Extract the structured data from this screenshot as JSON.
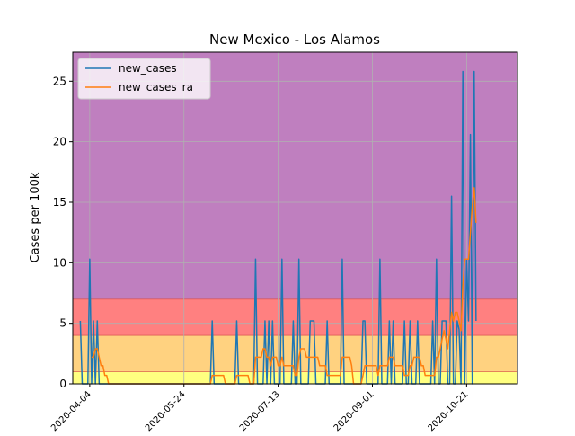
{
  "chart_data": {
    "type": "line",
    "title": "New Mexico - Los Alamos",
    "xlabel": "",
    "ylabel": "Cases per 100k",
    "x_start": "2020-03-30",
    "x_step_days": 1,
    "xlim": [
      "2020-03-26",
      "2020-11-17"
    ],
    "ylim": [
      0,
      27.4
    ],
    "xticks": [
      "2020-04-04",
      "2020-05-24",
      "2020-07-13",
      "2020-09-01",
      "2020-10-21"
    ],
    "xtick_labels": [
      "2020-04-04",
      "2020-05-24",
      "2020-07-13",
      "2020-09-01",
      "2020-10-21"
    ],
    "yticks": [
      0,
      5,
      10,
      15,
      20,
      25
    ],
    "ytick_labels": [
      "0",
      "5",
      "10",
      "15",
      "20",
      "25"
    ],
    "grid": true,
    "legend_position": "top-left",
    "bands": [
      {
        "from": 0,
        "to": 1,
        "color": "#ffff80"
      },
      {
        "from": 1,
        "to": 4,
        "color": "#ffd280"
      },
      {
        "from": 4,
        "to": 7,
        "color": "#ff8080"
      },
      {
        "from": 7,
        "to": 27.4,
        "color": "#bf7fbf"
      }
    ],
    "band_edge_color": "#d04040",
    "series": [
      {
        "name": "new_cases",
        "color": "#1f77b4",
        "values": [
          5.2,
          0,
          0,
          0,
          0,
          10.3,
          0,
          5.2,
          0,
          5.2,
          0,
          0,
          0,
          0,
          0,
          0,
          0,
          0,
          0,
          0,
          0,
          0,
          0,
          0,
          0,
          0,
          0,
          0,
          0,
          0,
          0,
          0,
          0,
          0,
          0,
          0,
          0,
          0,
          0,
          0,
          0,
          0,
          0,
          0,
          0,
          0,
          0,
          0,
          0,
          0,
          0,
          0,
          0,
          0,
          0,
          0,
          0,
          0,
          0,
          0,
          0,
          0,
          0,
          0,
          0,
          0,
          0,
          0,
          0,
          0,
          5.2,
          0,
          0,
          0,
          0,
          0,
          0,
          0,
          0,
          0,
          0,
          0,
          0,
          5.2,
          0,
          0,
          0,
          0,
          0,
          0,
          0,
          0,
          0,
          10.3,
          0,
          0,
          0,
          0,
          5.2,
          0,
          5.2,
          0,
          5.2,
          0,
          0,
          0,
          0,
          10.3,
          0,
          0,
          0,
          0,
          0,
          5.2,
          0,
          0,
          10.3,
          0,
          0,
          0,
          0,
          0,
          5.2,
          5.2,
          5.2,
          0,
          0,
          0,
          0,
          0,
          0,
          5.2,
          0,
          0,
          0,
          0,
          0,
          0,
          0,
          10.3,
          0,
          0,
          0,
          0,
          0,
          0,
          0,
          0,
          0,
          0,
          5.2,
          5.2,
          0,
          0,
          0,
          0,
          0,
          0,
          0,
          10.3,
          0,
          0,
          0,
          0,
          5.2,
          0,
          5.2,
          0,
          0,
          0,
          0,
          0,
          5.2,
          0,
          0,
          5.2,
          0,
          0,
          0,
          5.2,
          0,
          0,
          0,
          0,
          0,
          0,
          0,
          5.2,
          0,
          10.3,
          0,
          0,
          5.2,
          5.2,
          5.2,
          0,
          0,
          15.5,
          0,
          0,
          5.2,
          4.5,
          0,
          25.8,
          0,
          10.3,
          5.2,
          20.6,
          0,
          25.8,
          5.2
        ]
      },
      {
        "name": "new_cases_ra",
        "color": "#ff7f0e",
        "values": [
          null,
          null,
          null,
          null,
          null,
          null,
          2.2,
          2.2,
          2.9,
          2.9,
          2.2,
          1.5,
          1.5,
          0.7,
          0.7,
          0,
          0,
          0,
          0,
          0,
          0,
          0,
          0,
          0,
          0,
          0,
          0,
          0,
          0,
          0,
          0,
          0,
          0,
          0,
          0,
          0,
          0,
          0,
          0,
          0,
          0,
          0,
          0,
          0,
          0,
          0,
          0,
          0,
          0,
          0,
          0,
          0,
          0,
          0,
          0,
          0,
          0,
          0,
          0,
          0,
          0,
          0,
          0,
          0,
          0,
          0,
          0,
          0,
          0,
          0,
          0.7,
          0.7,
          0.7,
          0.7,
          0.7,
          0.7,
          0.7,
          0,
          0,
          0,
          0,
          0,
          0,
          0.7,
          0.7,
          0.7,
          0.7,
          0.7,
          0.7,
          0.7,
          0,
          0,
          0,
          2.2,
          2.2,
          2.2,
          2.2,
          2.9,
          2.9,
          2.2,
          2.2,
          1.5,
          2.2,
          2.2,
          2.2,
          1.5,
          1.5,
          2.2,
          1.5,
          1.5,
          1.5,
          1.5,
          1.5,
          1.5,
          0.7,
          0.7,
          2.2,
          2.9,
          2.9,
          2.9,
          2.2,
          2.2,
          2.2,
          2.2,
          2.2,
          2.2,
          2.2,
          1.5,
          1.5,
          1.5,
          1.5,
          0.7,
          0.7,
          0.7,
          0.7,
          0.7,
          0.7,
          0.7,
          0.7,
          2.2,
          2.2,
          2.2,
          2.2,
          2.2,
          1.5,
          0,
          0,
          0,
          0,
          0,
          0.7,
          1.5,
          1.5,
          1.5,
          1.5,
          1.5,
          1.5,
          1.5,
          0.7,
          1.5,
          1.5,
          1.5,
          1.5,
          1.5,
          2.2,
          2.2,
          2.2,
          1.5,
          1.5,
          1.5,
          1.5,
          1.5,
          0.7,
          0.7,
          0.7,
          1.5,
          1.5,
          2.2,
          2.2,
          2.2,
          2.2,
          1.5,
          1.5,
          0.7,
          0.7,
          0.7,
          0.7,
          0.7,
          0.7,
          2.2,
          2.2,
          2.9,
          3.7,
          4.4,
          3.7,
          2.9,
          4.4,
          5.9,
          5.2,
          5.9,
          5.9,
          5.2,
          4.4,
          8.1,
          10.3,
          10.3,
          10.3,
          12.5,
          14.7,
          16.2,
          13.3
        ]
      }
    ]
  }
}
